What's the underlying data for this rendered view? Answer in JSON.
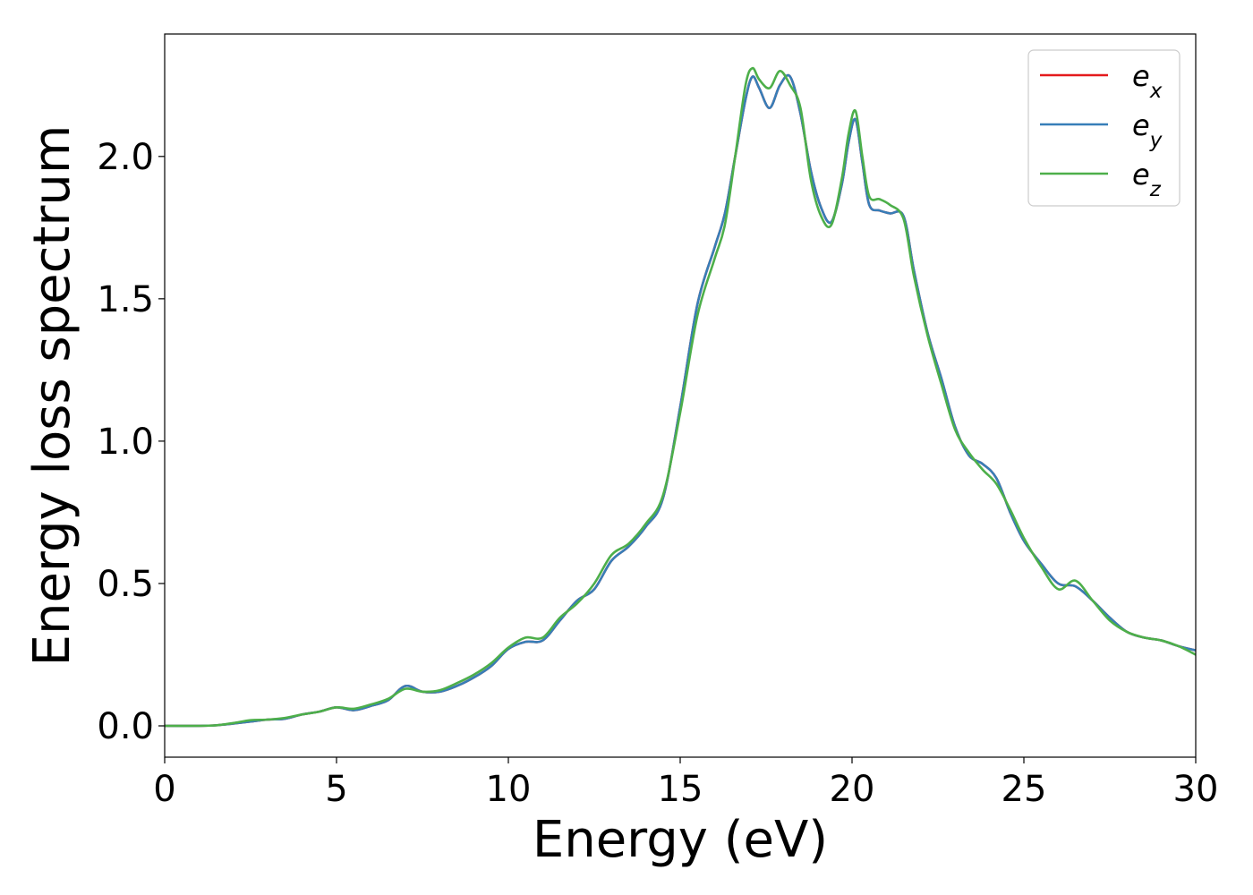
{
  "chart_data": {
    "type": "line",
    "xlabel": "Energy (eV)",
    "ylabel": "Energy loss spectrum",
    "xlim": [
      0,
      30
    ],
    "ylim": [
      -0.11,
      2.43
    ],
    "xticks": [
      0,
      5,
      10,
      15,
      20,
      25,
      30
    ],
    "xtick_labels": [
      "0",
      "5",
      "10",
      "15",
      "20",
      "25",
      "30"
    ],
    "yticks": [
      0.0,
      0.5,
      1.0,
      1.5,
      2.0
    ],
    "ytick_labels": [
      "0.0",
      "0.5",
      "1.0",
      "1.5",
      "2.0"
    ],
    "grid": false,
    "legend_position": "top-right",
    "series": [
      {
        "name": "e",
        "subscript": "x",
        "color": "#e41a1c",
        "x": [
          0,
          1,
          1.5,
          2,
          2.5,
          3,
          3.5,
          4,
          4.5,
          5,
          5.5,
          6,
          6.5,
          7,
          7.5,
          8,
          8.5,
          9,
          9.5,
          10,
          10.5,
          11,
          11.5,
          12,
          12.5,
          13,
          13.5,
          14,
          14.5,
          15,
          15.5,
          16,
          16.3,
          16.6,
          16.9,
          17.1,
          17.3,
          17.6,
          17.9,
          18.2,
          18.5,
          18.8,
          19.1,
          19.4,
          19.7,
          19.9,
          20.1,
          20.3,
          20.5,
          20.8,
          21.1,
          21.5,
          21.8,
          22.2,
          22.6,
          23,
          23.4,
          23.8,
          24.2,
          24.6,
          25,
          25.5,
          26,
          26.5,
          27,
          27.5,
          28,
          28.5,
          29,
          29.5,
          30
        ],
        "y": [
          0.0,
          0.0,
          0.002,
          0.008,
          0.015,
          0.022,
          0.025,
          0.04,
          0.05,
          0.065,
          0.055,
          0.07,
          0.09,
          0.14,
          0.12,
          0.12,
          0.14,
          0.17,
          0.21,
          0.27,
          0.295,
          0.3,
          0.37,
          0.44,
          0.48,
          0.58,
          0.63,
          0.7,
          0.8,
          1.12,
          1.48,
          1.68,
          1.8,
          2.0,
          2.2,
          2.28,
          2.24,
          2.17,
          2.25,
          2.28,
          2.15,
          1.95,
          1.82,
          1.77,
          1.9,
          2.05,
          2.13,
          1.98,
          1.83,
          1.81,
          1.8,
          1.79,
          1.6,
          1.38,
          1.22,
          1.05,
          0.95,
          0.92,
          0.87,
          0.75,
          0.65,
          0.57,
          0.5,
          0.49,
          0.44,
          0.38,
          0.33,
          0.31,
          0.3,
          0.28,
          0.265
        ]
      },
      {
        "name": "e",
        "subscript": "y",
        "color": "#377eb8",
        "x": [
          0,
          1,
          1.5,
          2,
          2.5,
          3,
          3.5,
          4,
          4.5,
          5,
          5.5,
          6,
          6.5,
          7,
          7.5,
          8,
          8.5,
          9,
          9.5,
          10,
          10.5,
          11,
          11.5,
          12,
          12.5,
          13,
          13.5,
          14,
          14.5,
          15,
          15.5,
          16,
          16.3,
          16.6,
          16.9,
          17.1,
          17.3,
          17.6,
          17.9,
          18.2,
          18.5,
          18.8,
          19.1,
          19.4,
          19.7,
          19.9,
          20.1,
          20.3,
          20.5,
          20.8,
          21.1,
          21.5,
          21.8,
          22.2,
          22.6,
          23,
          23.4,
          23.8,
          24.2,
          24.6,
          25,
          25.5,
          26,
          26.5,
          27,
          27.5,
          28,
          28.5,
          29,
          29.5,
          30
        ],
        "y": [
          0.0,
          0.0,
          0.002,
          0.008,
          0.015,
          0.022,
          0.025,
          0.04,
          0.05,
          0.065,
          0.055,
          0.07,
          0.09,
          0.14,
          0.12,
          0.12,
          0.14,
          0.17,
          0.21,
          0.27,
          0.295,
          0.3,
          0.37,
          0.44,
          0.48,
          0.58,
          0.63,
          0.7,
          0.8,
          1.12,
          1.48,
          1.68,
          1.8,
          2.0,
          2.2,
          2.28,
          2.24,
          2.17,
          2.25,
          2.28,
          2.15,
          1.95,
          1.82,
          1.77,
          1.9,
          2.05,
          2.13,
          1.98,
          1.83,
          1.81,
          1.8,
          1.79,
          1.6,
          1.38,
          1.22,
          1.05,
          0.95,
          0.92,
          0.87,
          0.75,
          0.65,
          0.57,
          0.5,
          0.49,
          0.44,
          0.38,
          0.33,
          0.31,
          0.3,
          0.28,
          0.265
        ]
      },
      {
        "name": "e",
        "subscript": "z",
        "color": "#4daf4a",
        "x": [
          0,
          1,
          1.5,
          2,
          2.5,
          3,
          3.5,
          4,
          4.5,
          5,
          5.5,
          6,
          6.5,
          7,
          7.5,
          8,
          8.5,
          9,
          9.5,
          10,
          10.5,
          11,
          11.5,
          12,
          12.5,
          13,
          13.5,
          14,
          14.5,
          15,
          15.5,
          16,
          16.3,
          16.6,
          16.9,
          17.1,
          17.3,
          17.6,
          17.9,
          18.2,
          18.5,
          18.8,
          19.1,
          19.4,
          19.7,
          19.9,
          20.1,
          20.3,
          20.5,
          20.8,
          21.1,
          21.5,
          21.8,
          22.2,
          22.6,
          23,
          23.4,
          23.8,
          24.2,
          24.6,
          25,
          25.5,
          26,
          26.5,
          27,
          27.5,
          28,
          28.5,
          29,
          29.5,
          30
        ],
        "y": [
          0.0,
          0.0,
          0.002,
          0.01,
          0.02,
          0.022,
          0.028,
          0.04,
          0.05,
          0.065,
          0.06,
          0.075,
          0.095,
          0.13,
          0.12,
          0.125,
          0.15,
          0.18,
          0.22,
          0.275,
          0.31,
          0.31,
          0.38,
          0.43,
          0.5,
          0.6,
          0.64,
          0.71,
          0.81,
          1.1,
          1.44,
          1.64,
          1.76,
          2.0,
          2.25,
          2.31,
          2.27,
          2.24,
          2.3,
          2.25,
          2.17,
          1.92,
          1.79,
          1.76,
          1.92,
          2.08,
          2.16,
          2.0,
          1.86,
          1.85,
          1.83,
          1.78,
          1.58,
          1.37,
          1.2,
          1.04,
          0.96,
          0.9,
          0.85,
          0.76,
          0.66,
          0.56,
          0.48,
          0.51,
          0.44,
          0.37,
          0.33,
          0.31,
          0.3,
          0.28,
          0.25
        ]
      }
    ]
  }
}
